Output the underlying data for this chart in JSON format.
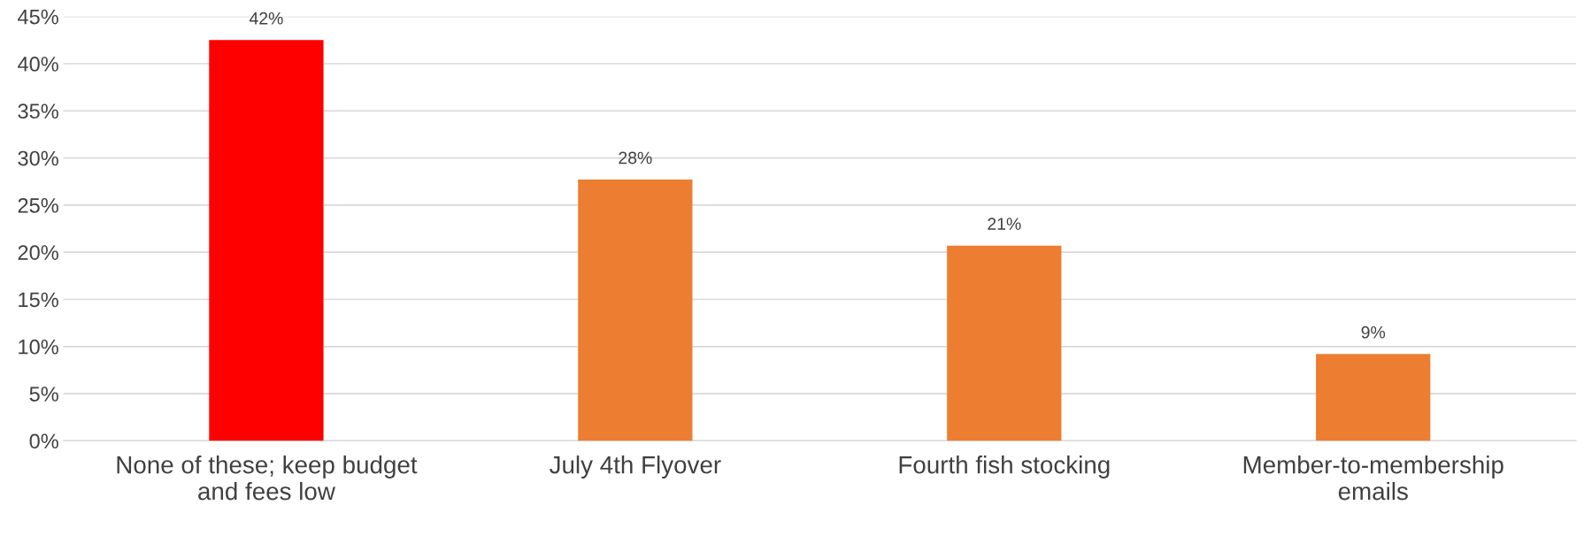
{
  "chart_data": {
    "type": "bar",
    "categories": [
      "None of these; keep budget\nand fees low",
      "July 4th Flyover",
      "Fourth fish stocking",
      "Member-to-membership\nemails"
    ],
    "values": [
      42.5,
      27.7,
      20.7,
      9.2
    ],
    "colors": [
      "#ff0000",
      "#ed7d31",
      "#ed7d31",
      "#ed7d31"
    ],
    "value_labels": [
      "42%",
      "28%",
      "21%",
      "9%"
    ],
    "ylim": [
      0,
      45
    ],
    "yticks": [
      {
        "value": 0,
        "label": "0%"
      },
      {
        "value": 5,
        "label": "5%"
      },
      {
        "value": 10,
        "label": "10%"
      },
      {
        "value": 15,
        "label": "15%"
      },
      {
        "value": 20,
        "label": "20%"
      },
      {
        "value": 25,
        "label": "25%"
      },
      {
        "value": 30,
        "label": "30%"
      },
      {
        "value": 35,
        "label": "35%"
      },
      {
        "value": 40,
        "label": "40%"
      },
      {
        "value": 45,
        "label": "45%"
      }
    ],
    "grid": "y",
    "legend": false
  }
}
